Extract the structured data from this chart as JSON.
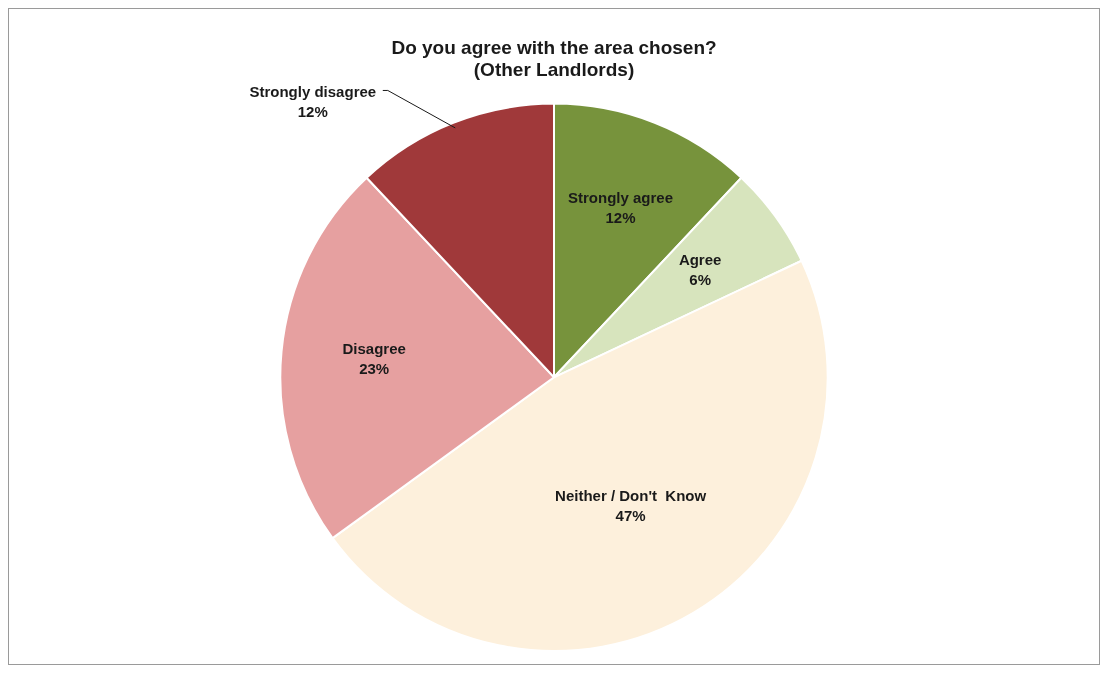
{
  "chart_data": {
    "type": "pie",
    "title": "Do you agree with the area chosen?\n(Other Landlords)",
    "categories": [
      "Strongly agree",
      "Agree",
      "Neither / Don't  Know",
      "Disagree",
      "Strongly disagree"
    ],
    "values": [
      12,
      6,
      47,
      23,
      12
    ],
    "value_labels": [
      "12%",
      "6%",
      "47%",
      "23%",
      "12%"
    ],
    "colors": [
      "#77933c",
      "#d7e4bd",
      "#fdf0dc",
      "#e6a0a0",
      "#a0393a"
    ],
    "legend": false
  }
}
